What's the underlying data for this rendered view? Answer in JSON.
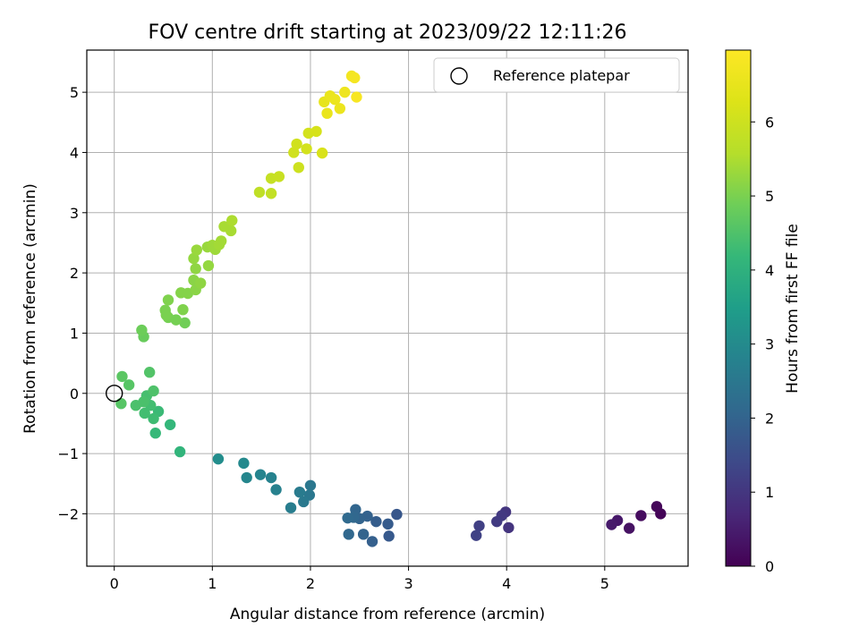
{
  "chart_data": {
    "type": "scatter",
    "title": "FOV centre drift starting at 2023/09/22 12:11:26",
    "xlabel": "Angular distance from reference (arcmin)",
    "ylabel": "Rotation from reference (arcmin)",
    "xlim": [
      -0.28,
      5.85
    ],
    "ylim": [
      -2.87,
      5.7
    ],
    "xticks": [
      0,
      1,
      2,
      3,
      4,
      5
    ],
    "yticks": [
      -2,
      -1,
      0,
      1,
      2,
      3,
      4,
      5
    ],
    "grid": true,
    "legend": {
      "position": "top-right",
      "label": "Reference platepar"
    },
    "reference_point": {
      "x": 0,
      "y": 0
    },
    "colorbar": {
      "label": "Hours from first FF file",
      "range": [
        0,
        6.97
      ],
      "ticks": [
        0,
        1,
        2,
        3,
        4,
        5,
        6
      ],
      "colormap": "viridis"
    },
    "points": [
      {
        "x": 5.57,
        "y": -2.0,
        "c": 0.05
      },
      {
        "x": 5.53,
        "y": -1.88,
        "c": 0.1
      },
      {
        "x": 5.37,
        "y": -2.03,
        "c": 0.2
      },
      {
        "x": 5.25,
        "y": -2.24,
        "c": 0.3
      },
      {
        "x": 5.13,
        "y": -2.11,
        "c": 0.4
      },
      {
        "x": 5.07,
        "y": -2.18,
        "c": 0.45
      },
      {
        "x": 4.02,
        "y": -2.23,
        "c": 0.95
      },
      {
        "x": 3.99,
        "y": -1.97,
        "c": 1.0
      },
      {
        "x": 3.95,
        "y": -2.03,
        "c": 1.05
      },
      {
        "x": 3.9,
        "y": -2.13,
        "c": 1.1
      },
      {
        "x": 3.72,
        "y": -2.2,
        "c": 1.2
      },
      {
        "x": 3.69,
        "y": -2.36,
        "c": 1.25
      },
      {
        "x": 2.88,
        "y": -2.01,
        "c": 1.7
      },
      {
        "x": 2.8,
        "y": -2.37,
        "c": 1.75
      },
      {
        "x": 2.79,
        "y": -2.17,
        "c": 1.8
      },
      {
        "x": 2.67,
        "y": -2.13,
        "c": 1.85
      },
      {
        "x": 2.63,
        "y": -2.46,
        "c": 1.9
      },
      {
        "x": 2.58,
        "y": -2.04,
        "c": 1.95
      },
      {
        "x": 2.54,
        "y": -2.34,
        "c": 2.0
      },
      {
        "x": 2.5,
        "y": -2.08,
        "c": 2.0
      },
      {
        "x": 2.46,
        "y": -1.93,
        "c": 2.05
      },
      {
        "x": 2.44,
        "y": -2.06,
        "c": 2.1
      },
      {
        "x": 2.39,
        "y": -2.34,
        "c": 2.1
      },
      {
        "x": 2.38,
        "y": -2.07,
        "c": 2.15
      },
      {
        "x": 2.0,
        "y": -1.53,
        "c": 2.5
      },
      {
        "x": 1.99,
        "y": -1.69,
        "c": 2.5
      },
      {
        "x": 1.93,
        "y": -1.8,
        "c": 2.55
      },
      {
        "x": 1.89,
        "y": -1.64,
        "c": 2.6
      },
      {
        "x": 1.8,
        "y": -1.9,
        "c": 2.65
      },
      {
        "x": 1.65,
        "y": -1.6,
        "c": 2.75
      },
      {
        "x": 1.6,
        "y": -1.4,
        "c": 2.8
      },
      {
        "x": 1.49,
        "y": -1.35,
        "c": 2.85
      },
      {
        "x": 1.35,
        "y": -1.4,
        "c": 2.9
      },
      {
        "x": 1.32,
        "y": -1.16,
        "c": 2.95
      },
      {
        "x": 1.06,
        "y": -1.09,
        "c": 3.05
      },
      {
        "x": 0.67,
        "y": -0.97,
        "c": 4.1
      },
      {
        "x": 0.57,
        "y": -0.52,
        "c": 4.15
      },
      {
        "x": 0.42,
        "y": -0.66,
        "c": 4.2
      },
      {
        "x": 0.45,
        "y": -0.3,
        "c": 4.25
      },
      {
        "x": 0.4,
        "y": -0.42,
        "c": 4.3
      },
      {
        "x": 0.31,
        "y": -0.33,
        "c": 4.35
      },
      {
        "x": 0.37,
        "y": -0.2,
        "c": 4.35
      },
      {
        "x": 0.33,
        "y": -0.04,
        "c": 4.4
      },
      {
        "x": 0.22,
        "y": -0.2,
        "c": 4.45
      },
      {
        "x": 0.3,
        "y": -0.14,
        "c": 4.45
      },
      {
        "x": 0.4,
        "y": 0.04,
        "c": 4.5
      },
      {
        "x": 0.36,
        "y": 0.35,
        "c": 4.55
      },
      {
        "x": 0.15,
        "y": 0.14,
        "c": 4.6
      },
      {
        "x": 0.07,
        "y": -0.17,
        "c": 4.6
      },
      {
        "x": 0.08,
        "y": 0.28,
        "c": 4.65
      },
      {
        "x": 0.3,
        "y": 0.94,
        "c": 4.8
      },
      {
        "x": 0.28,
        "y": 1.05,
        "c": 4.85
      },
      {
        "x": 0.72,
        "y": 1.17,
        "c": 4.9
      },
      {
        "x": 0.63,
        "y": 1.22,
        "c": 4.95
      },
      {
        "x": 0.55,
        "y": 1.26,
        "c": 4.95
      },
      {
        "x": 0.53,
        "y": 1.3,
        "c": 5.0
      },
      {
        "x": 0.52,
        "y": 1.38,
        "c": 5.0
      },
      {
        "x": 0.7,
        "y": 1.39,
        "c": 5.05
      },
      {
        "x": 0.55,
        "y": 1.55,
        "c": 5.05
      },
      {
        "x": 0.68,
        "y": 1.67,
        "c": 5.1
      },
      {
        "x": 0.75,
        "y": 1.66,
        "c": 5.1
      },
      {
        "x": 0.83,
        "y": 1.72,
        "c": 5.15
      },
      {
        "x": 0.81,
        "y": 1.88,
        "c": 5.15
      },
      {
        "x": 0.88,
        "y": 1.83,
        "c": 5.2
      },
      {
        "x": 0.83,
        "y": 2.07,
        "c": 5.2
      },
      {
        "x": 0.96,
        "y": 2.12,
        "c": 5.25
      },
      {
        "x": 0.81,
        "y": 2.24,
        "c": 5.25
      },
      {
        "x": 0.84,
        "y": 2.38,
        "c": 5.3
      },
      {
        "x": 0.95,
        "y": 2.43,
        "c": 5.3
      },
      {
        "x": 1.0,
        "y": 2.46,
        "c": 5.35
      },
      {
        "x": 1.03,
        "y": 2.39,
        "c": 5.35
      },
      {
        "x": 1.07,
        "y": 2.47,
        "c": 5.4
      },
      {
        "x": 1.09,
        "y": 2.53,
        "c": 5.4
      },
      {
        "x": 1.12,
        "y": 2.77,
        "c": 5.45
      },
      {
        "x": 1.19,
        "y": 2.7,
        "c": 5.45
      },
      {
        "x": 1.2,
        "y": 2.87,
        "c": 5.5
      },
      {
        "x": 1.48,
        "y": 3.34,
        "c": 5.75
      },
      {
        "x": 1.6,
        "y": 3.32,
        "c": 5.8
      },
      {
        "x": 1.6,
        "y": 3.57,
        "c": 5.85
      },
      {
        "x": 1.68,
        "y": 3.6,
        "c": 5.9
      },
      {
        "x": 1.88,
        "y": 3.75,
        "c": 6.0
      },
      {
        "x": 1.83,
        "y": 4.0,
        "c": 6.05
      },
      {
        "x": 1.86,
        "y": 4.14,
        "c": 6.05
      },
      {
        "x": 1.96,
        "y": 4.06,
        "c": 6.1
      },
      {
        "x": 1.98,
        "y": 4.32,
        "c": 6.1
      },
      {
        "x": 2.06,
        "y": 4.35,
        "c": 6.15
      },
      {
        "x": 2.12,
        "y": 3.99,
        "c": 6.2
      },
      {
        "x": 2.14,
        "y": 4.84,
        "c": 6.5
      },
      {
        "x": 2.17,
        "y": 4.65,
        "c": 6.55
      },
      {
        "x": 2.2,
        "y": 4.94,
        "c": 6.55
      },
      {
        "x": 2.25,
        "y": 4.88,
        "c": 6.6
      },
      {
        "x": 2.3,
        "y": 4.73,
        "c": 6.6
      },
      {
        "x": 2.35,
        "y": 5.0,
        "c": 6.65
      },
      {
        "x": 2.42,
        "y": 5.27,
        "c": 6.75
      },
      {
        "x": 2.45,
        "y": 5.24,
        "c": 6.8
      },
      {
        "x": 2.47,
        "y": 4.92,
        "c": 6.85
      }
    ]
  }
}
